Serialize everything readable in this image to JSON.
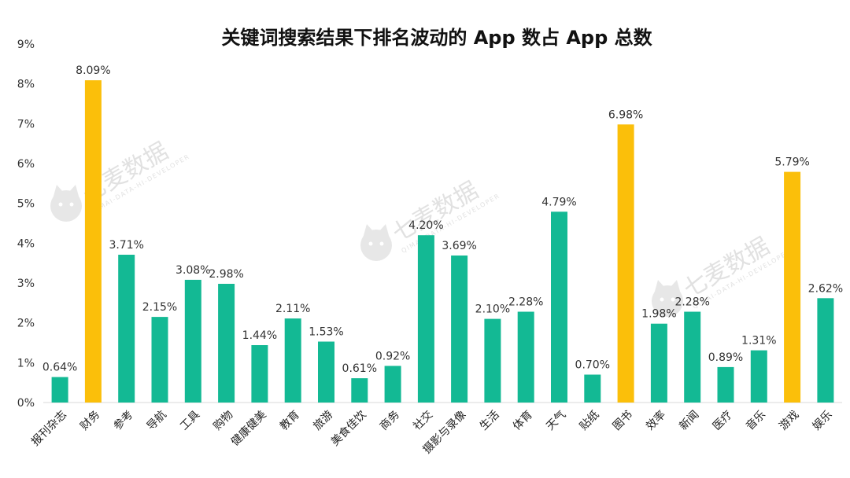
{
  "chart_data": {
    "type": "bar",
    "title": "关键词搜索结果下排名波动的 App 数占 App 总数",
    "xlabel": "",
    "ylabel": "",
    "ylim": [
      0,
      9
    ],
    "y_ticks": [
      "0%",
      "1%",
      "2%",
      "3%",
      "4%",
      "5%",
      "6%",
      "7%",
      "8%",
      "9%"
    ],
    "categories": [
      "报刊杂志",
      "财务",
      "参考",
      "导航",
      "工具",
      "购物",
      "健康健美",
      "教育",
      "旅游",
      "美食佳饮",
      "商务",
      "社交",
      "摄影与录像",
      "生活",
      "体育",
      "天气",
      "贴纸",
      "图书",
      "效率",
      "新闻",
      "医疗",
      "音乐",
      "游戏",
      "娱乐"
    ],
    "values": [
      0.64,
      8.09,
      3.71,
      2.15,
      3.08,
      2.98,
      1.44,
      2.11,
      1.53,
      0.61,
      0.92,
      4.2,
      3.69,
      2.1,
      2.28,
      4.79,
      0.7,
      6.98,
      1.98,
      2.28,
      0.89,
      1.31,
      5.79,
      2.62
    ],
    "value_labels": [
      "0.64%",
      "8.09%",
      "3.71%",
      "2.15%",
      "3.08%",
      "2.98%",
      "1.44%",
      "2.11%",
      "1.53%",
      "0.61%",
      "0.92%",
      "4.20%",
      "3.69%",
      "2.10%",
      "2.28%",
      "4.79%",
      "0.70%",
      "6.98%",
      "1.98%",
      "2.28%",
      "0.89%",
      "1.31%",
      "5.79%",
      "2.62%"
    ],
    "highlighted": [
      "财务",
      "图书",
      "游戏"
    ],
    "colors": {
      "normal": "#13b994",
      "highlight": "#fbbf0a",
      "axis": "#d9d9d9"
    },
    "legend": "none",
    "grid": false
  },
  "watermark": {
    "text": "七麦数据",
    "subtext": "QIMAI-DATA-HI-DEVELOPER"
  }
}
